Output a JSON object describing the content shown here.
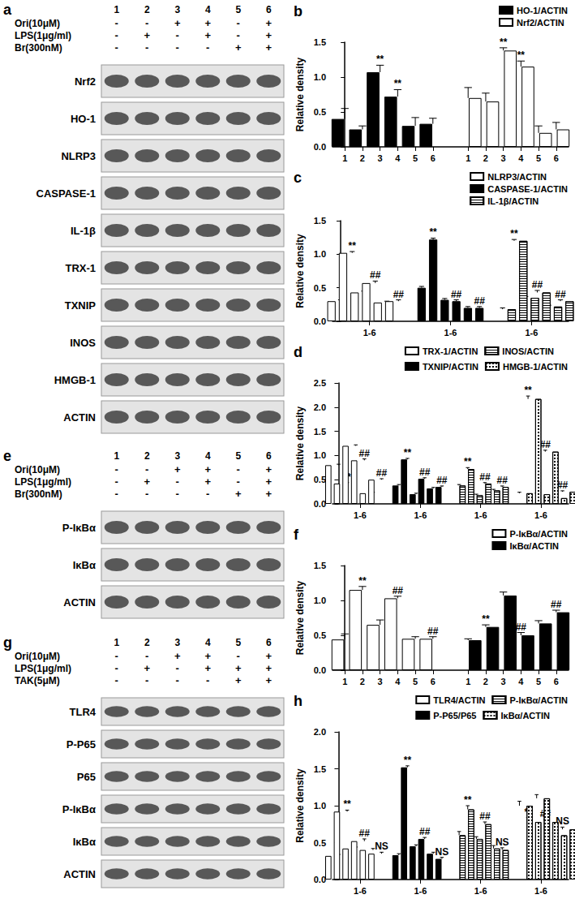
{
  "blots": [
    {
      "panel": "a",
      "lanes": [
        "1",
        "2",
        "3",
        "4",
        "5",
        "6"
      ],
      "treatments": [
        {
          "name": "Ori(10μM)",
          "signs": [
            "-",
            "-",
            "+",
            "+",
            "-",
            "+"
          ]
        },
        {
          "name": "LPS(1μg/ml)",
          "signs": [
            "-",
            "+",
            "-",
            "+",
            "-",
            "+"
          ]
        },
        {
          "name": "Br(300nM)",
          "signs": [
            "-",
            "-",
            "-",
            "-",
            "+",
            "+"
          ]
        }
      ],
      "rows": [
        "Nrf2",
        "HO-1",
        "NLRP3",
        "CASPASE-1",
        "IL-1β",
        "TRX-1",
        "TXNIP",
        "INOS",
        "HMGB-1",
        "ACTIN"
      ]
    },
    {
      "panel": "e",
      "lanes": [
        "1",
        "2",
        "3",
        "4",
        "5",
        "6"
      ],
      "treatments": [
        {
          "name": "Ori(10μM)",
          "signs": [
            "-",
            "-",
            "+",
            "+",
            "-",
            "+"
          ]
        },
        {
          "name": "LPS(1μg/ml)",
          "signs": [
            "-",
            "+",
            "-",
            "+",
            "-",
            "+"
          ]
        },
        {
          "name": "Br(300nM)",
          "signs": [
            "-",
            "-",
            "-",
            "-",
            "+",
            "+"
          ]
        }
      ],
      "rows": [
        "P-IκBα",
        "IκBα",
        "ACTIN"
      ]
    },
    {
      "panel": "g",
      "lanes": [
        "1",
        "2",
        "3",
        "4",
        "5",
        "6"
      ],
      "treatments": [
        {
          "name": "Ori(10μM)",
          "signs": [
            "-",
            "-",
            "+",
            "+",
            "-",
            "+"
          ]
        },
        {
          "name": "LPS(1μg/ml)",
          "signs": [
            "-",
            "+",
            "-",
            "+",
            "+",
            "+"
          ]
        },
        {
          "name": "TAK(5μM)",
          "signs": [
            "-",
            "-",
            "-",
            "-",
            "+",
            "+"
          ]
        }
      ],
      "rows": [
        "TLR4",
        "P-P65",
        "P65",
        "P-IκBα",
        "IκBα",
        "ACTIN"
      ]
    }
  ],
  "chart_data": [
    {
      "panel": "b",
      "type": "bar",
      "y_label": "Relative density",
      "legend": "upper right",
      "categories": [
        "1",
        "2",
        "3",
        "4",
        "5",
        "6"
      ],
      "ylim": [
        0,
        1.5
      ],
      "yticks": [
        {
          "value": 0,
          "label": "0.0"
        },
        {
          "value": 0.5,
          "label": "0.5"
        },
        {
          "value": 1,
          "label": "1.0"
        },
        {
          "value": 1.5,
          "label": "1.5"
        }
      ],
      "series": [
        {
          "name": "HO-1/ACTIN",
          "color": "#000000",
          "marker": "solid",
          "values": [
            0.4,
            0.25,
            1.07,
            0.72,
            0.3,
            0.33
          ],
          "errors": [
            0.15,
            0.05,
            0.1,
            0.1,
            0.12,
            0.08
          ],
          "annotations": [
            null,
            null,
            "**",
            "**",
            null,
            null
          ]
        },
        {
          "name": "Nrf2/ACTIN",
          "color": "#ffffff",
          "marker": "solid",
          "values": [
            0.7,
            0.65,
            1.38,
            1.15,
            0.2,
            0.25
          ],
          "errors": [
            0.15,
            0.12,
            0.04,
            0.08,
            0.1,
            0.1
          ],
          "annotations": [
            null,
            null,
            "**",
            "**",
            null,
            null
          ]
        }
      ]
    },
    {
      "panel": "c",
      "type": "bar",
      "y_label": "Relative density",
      "legend": "upper right",
      "group_labels": [
        "1-6",
        "1-6",
        "1-6"
      ],
      "ylim": [
        0,
        1.5
      ],
      "yticks": [
        {
          "value": 0,
          "label": "0.0"
        },
        {
          "value": 0.5,
          "label": "0.5"
        },
        {
          "value": 1,
          "label": "1.0"
        },
        {
          "value": 1.5,
          "label": "1.5"
        }
      ],
      "series": [
        {
          "name": "NLRP3/ACTIN",
          "color": "#ffffff",
          "marker": "solid",
          "values": [
            0.3,
            1.02,
            0.43,
            0.57,
            0.28,
            0.3
          ],
          "errors": [
            0.02,
            0.02,
            0.02,
            0.03,
            0.02,
            0.02
          ],
          "annotations": [
            null,
            "**",
            null,
            "##",
            null,
            "##"
          ]
        },
        {
          "name": "CASPASE-1/ACTIN",
          "color": "#000000",
          "marker": "solid",
          "values": [
            0.5,
            1.22,
            0.32,
            0.3,
            0.2,
            0.2
          ],
          "errors": [
            0.02,
            0.02,
            0.02,
            0.02,
            0.02,
            0.02
          ],
          "annotations": [
            null,
            "**",
            null,
            "##",
            null,
            "##"
          ]
        },
        {
          "name": "IL-1β/ACTIN",
          "color": "#ffffff",
          "marker": "hlines",
          "values": [
            0.18,
            1.2,
            0.35,
            0.43,
            0.22,
            0.3
          ],
          "errors": [
            0.02,
            0.02,
            0.02,
            0.03,
            0.02,
            0.02
          ],
          "annotations": [
            null,
            "**",
            null,
            "##",
            null,
            "##"
          ]
        }
      ]
    },
    {
      "panel": "d",
      "type": "bar",
      "y_label": "Relative density",
      "legend": "upper right",
      "group_labels": [
        "1-6",
        "1-6",
        "1-6",
        "1-6"
      ],
      "ylim": [
        0,
        2.5
      ],
      "yticks": [
        {
          "value": 0,
          "label": "0.0"
        },
        {
          "value": 0.5,
          "label": "0.5"
        },
        {
          "value": 1,
          "label": "1.0"
        },
        {
          "value": 1.5,
          "label": "1.5"
        },
        {
          "value": 2,
          "label": "2.0"
        },
        {
          "value": 2.5,
          "label": "2.5"
        }
      ],
      "series": [
        {
          "name": "TRX-1/ACTIN",
          "color": "#ffffff",
          "marker": "solid",
          "values": [
            0.8,
            0.42,
            1.2,
            0.9,
            0.22,
            0.5
          ],
          "errors": [
            0.02,
            0.02,
            0.02,
            0.03,
            0.02,
            0.02
          ],
          "annotations": [
            null,
            "**",
            null,
            "##",
            null,
            "##"
          ]
        },
        {
          "name": "TXNIP/ACTIN",
          "color": "#000000",
          "marker": "solid",
          "values": [
            0.38,
            0.92,
            0.2,
            0.52,
            0.32,
            0.35
          ],
          "errors": [
            0.02,
            0.02,
            0.02,
            0.02,
            0.02,
            0.02
          ],
          "annotations": [
            null,
            "**",
            null,
            "##",
            null,
            "##"
          ]
        },
        {
          "name": "INOS/ACTIN",
          "color": "#ffffff",
          "marker": "hlines",
          "values": [
            0.38,
            0.72,
            0.18,
            0.42,
            0.28,
            0.35
          ],
          "errors": [
            0.02,
            0.03,
            0.02,
            0.02,
            0.02,
            0.02
          ],
          "annotations": [
            null,
            "**",
            null,
            "##",
            null,
            "##"
          ]
        },
        {
          "name": "HMGB-1/ACTIN",
          "color": "#ffffff",
          "marker": "checker",
          "values": [
            0.22,
            2.17,
            0.2,
            1.08,
            0.12,
            0.25
          ],
          "errors": [
            0.02,
            0.06,
            0.02,
            0.03,
            0.02,
            0.02
          ],
          "annotations": [
            null,
            "**",
            null,
            "##",
            null,
            "##"
          ]
        }
      ]
    },
    {
      "panel": "f",
      "type": "bar",
      "y_label": "Relative density",
      "legend": "upper right",
      "categories": [
        "1",
        "2",
        "3",
        "4",
        "5",
        "6"
      ],
      "ylim": [
        0,
        1.5
      ],
      "yticks": [
        {
          "value": 0,
          "label": "0.0"
        },
        {
          "value": 0.5,
          "label": "0.5"
        },
        {
          "value": 1,
          "label": "1.0"
        },
        {
          "value": 1.5,
          "label": "1.5"
        }
      ],
      "series": [
        {
          "name": "P-IκBα/ACTIN",
          "color": "#ffffff",
          "marker": "solid",
          "values": [
            0.44,
            1.15,
            0.65,
            1.03,
            0.45,
            0.45
          ],
          "errors": [
            0.08,
            0.05,
            0.07,
            0.03,
            0.03,
            0.03
          ],
          "annotations": [
            null,
            "**",
            null,
            "##",
            null,
            "##"
          ]
        },
        {
          "name": "IκBα/ACTIN",
          "color": "#000000",
          "marker": "solid",
          "values": [
            0.43,
            0.62,
            1.07,
            0.5,
            0.67,
            0.83
          ],
          "errors": [
            0.02,
            0.03,
            0.05,
            0.04,
            0.04,
            0.03
          ],
          "annotations": [
            null,
            "**",
            null,
            "##",
            null,
            "##"
          ]
        }
      ]
    },
    {
      "panel": "h",
      "type": "bar",
      "y_label": "Relative density",
      "legend": "upper right",
      "group_labels": [
        "1-6",
        "1-6",
        "1-6",
        "1-6"
      ],
      "ylim": [
        0,
        2
      ],
      "yticks": [
        {
          "value": 0,
          "label": "0.0"
        },
        {
          "value": 0.5,
          "label": "0.5"
        },
        {
          "value": 1,
          "label": "1.0"
        },
        {
          "value": 1.5,
          "label": "1.5"
        },
        {
          "value": 2,
          "label": "2.0"
        }
      ],
      "series": [
        {
          "name": "TLR4/ACTIN",
          "color": "#ffffff",
          "marker": "solid",
          "values": [
            0.32,
            0.92,
            0.42,
            0.52,
            0.4,
            0.35
          ],
          "errors": [
            0.02,
            0.02,
            0.02,
            0.03,
            0.02,
            0.02
          ],
          "annotations": [
            null,
            "**",
            null,
            "##",
            null,
            "NS"
          ]
        },
        {
          "name": "P-P65/P65",
          "color": "#000000",
          "marker": "solid",
          "values": [
            0.33,
            1.52,
            0.45,
            0.55,
            0.35,
            0.28
          ],
          "errors": [
            0.02,
            0.02,
            0.02,
            0.02,
            0.02,
            0.02
          ],
          "annotations": [
            null,
            "**",
            null,
            "##",
            null,
            "NS"
          ]
        },
        {
          "name": "P-IκBα/ACTIN",
          "color": "#ffffff",
          "marker": "hlines",
          "values": [
            0.6,
            0.95,
            0.55,
            0.75,
            0.42,
            0.4
          ],
          "errors": [
            0.05,
            0.05,
            0.03,
            0.03,
            0.04,
            0.03
          ],
          "annotations": [
            null,
            "**",
            null,
            "##",
            null,
            "NS"
          ]
        },
        {
          "name": "IκBα/ACTIN",
          "color": "#ffffff",
          "marker": "checker",
          "values": [
            1.0,
            0.78,
            1.1,
            0.78,
            0.6,
            0.68
          ],
          "errors": [
            0.06,
            0.06,
            0.05,
            0.03,
            0.03,
            0.03
          ],
          "annotations": [
            null,
            "**",
            null,
            "##",
            null,
            "NS"
          ]
        }
      ]
    }
  ]
}
